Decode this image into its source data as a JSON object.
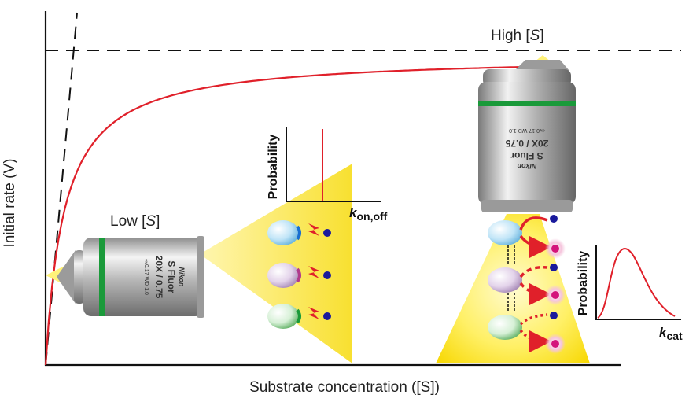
{
  "axes": {
    "x_title": "Substrate concentration ([S])",
    "y_title": "Initial rate (V)"
  },
  "conditions": {
    "low": {
      "prefix": "Low [",
      "var": "S",
      "suffix": "]"
    },
    "high": {
      "prefix": "High [",
      "var": "S",
      "suffix": "]"
    }
  },
  "objective_text": {
    "brand": "Nikon",
    "line1": "S Fluor",
    "line2": "20X / 0.75",
    "line3": "∞/0.17 WD 1.0"
  },
  "insets": {
    "binding": {
      "ylabel": "Probability",
      "xvar": "k",
      "xsub": "on,off"
    },
    "catalysis": {
      "ylabel": "Probability",
      "xvar": "k",
      "xsub": "cat"
    }
  },
  "colors": {
    "curve": "#e0202a",
    "axis": "#111111",
    "beam": "#ffe600",
    "ring_green": "#1a9a3a",
    "substrate_dot": "#1a1a9c",
    "product_dot": "#d4147c"
  }
}
